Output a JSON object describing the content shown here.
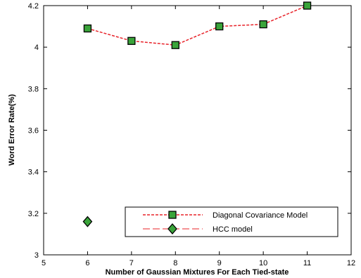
{
  "chart_data": {
    "type": "line",
    "xlabel": "Number of Gaussian Mixtures For Each Tied-state",
    "ylabel": "Word Error Rate(%)",
    "xlim": [
      5,
      12
    ],
    "ylim": [
      3,
      4.2
    ],
    "xticks": [
      5,
      6,
      7,
      8,
      9,
      10,
      11,
      12
    ],
    "yticks": [
      3,
      3.2,
      3.4,
      3.6,
      3.8,
      4,
      4.2
    ],
    "xtick_labels": [
      "5",
      "6",
      "7",
      "8",
      "9",
      "10",
      "11",
      "12"
    ],
    "ytick_labels": [
      "3",
      "3.2",
      "3.4",
      "3.6",
      "3.8",
      "4",
      "4.2"
    ],
    "grid": false,
    "legend_position": "bottom-right",
    "series": [
      {
        "name": "Diagonal Covariance Model",
        "marker": "square",
        "line_style": "dashed",
        "line_color": "#e8232a",
        "marker_color": "#3aa43a",
        "x": [
          6,
          7,
          8,
          9,
          10,
          11
        ],
        "y": [
          4.09,
          4.03,
          4.01,
          4.1,
          4.11,
          4.2
        ]
      },
      {
        "name": "HCC model",
        "marker": "diamond",
        "line_style": "dashed",
        "line_color": "#e8232a",
        "marker_color": "#3aa43a",
        "x": [
          6
        ],
        "y": [
          3.16
        ]
      }
    ]
  }
}
